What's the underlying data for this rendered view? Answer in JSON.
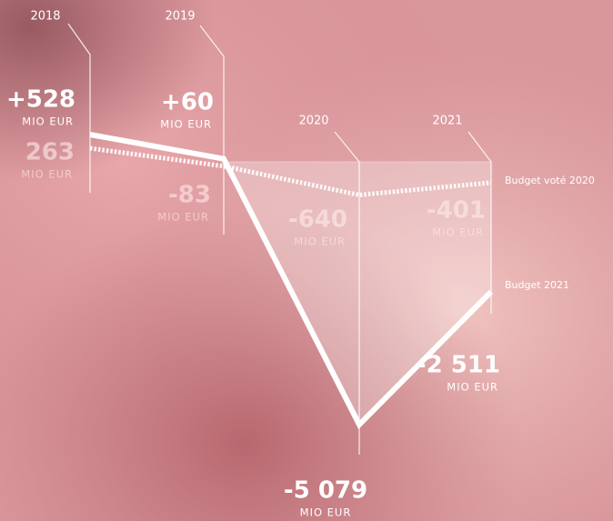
{
  "chart_data": {
    "type": "line",
    "categories": [
      "2018",
      "2019",
      "2020",
      "2021"
    ],
    "unit": "MIO EUR",
    "series": [
      {
        "name": "Budget 2021",
        "color": "#ffffff",
        "style": "solid",
        "values": [
          528,
          60,
          -5079,
          -2511
        ],
        "value_labels": [
          "+528",
          "+60",
          "-5 079",
          "-2 511"
        ]
      },
      {
        "name": "Budget voté 2020",
        "color": "#ffffff",
        "style": "dotted",
        "values": [
          263,
          -83,
          -640,
          -401
        ]
      }
    ]
  }
}
